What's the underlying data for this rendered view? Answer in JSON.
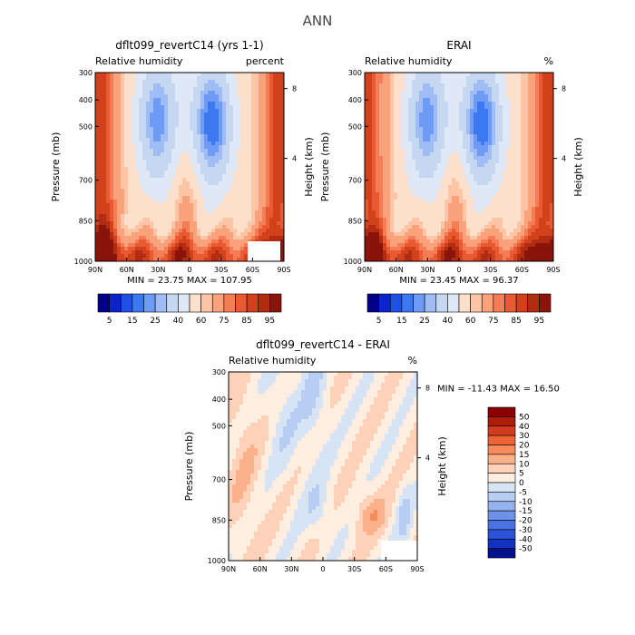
{
  "page_title": "ANN",
  "chart_data": [
    {
      "type": "heatmap",
      "title": "dflt099_revertC14 (yrs 1-1)",
      "subtitle_left": "Relative humidity",
      "subtitle_right": "percent",
      "xlabel": "",
      "ylabel": "Pressure (mb)",
      "ylabel_right": "Height (km)",
      "x_ticks": [
        "90N",
        "60N",
        "30N",
        "0",
        "30S",
        "60S",
        "90S"
      ],
      "y_ticks": [
        "300",
        "400",
        "500",
        "700",
        "850",
        "1000"
      ],
      "y_right_ticks": [
        "8",
        "4"
      ],
      "ylim": [
        1000,
        300
      ],
      "stats": "MIN =   23.75   MAX =  107.95",
      "colorbar": {
        "levels": [
          "5",
          "15",
          "25",
          "40",
          "60",
          "75",
          "85",
          "95"
        ],
        "colors": [
          "#00008b",
          "#0a24c8",
          "#1e50e6",
          "#3c78f0",
          "#6e9bf5",
          "#9fbcf5",
          "#c6d7f2",
          "#dfe8f6",
          "#fde0cc",
          "#fbc5a6",
          "#f9a27c",
          "#f47d55",
          "#ea5a32",
          "#d2401c",
          "#b22c12",
          "#8a140a"
        ]
      }
    },
    {
      "type": "heatmap",
      "title": "ERAI",
      "subtitle_left": "Relative humidity",
      "subtitle_right": "%",
      "xlabel": "",
      "ylabel": "Pressure (mb)",
      "ylabel_right": "Height (km)",
      "x_ticks": [
        "90N",
        "60N",
        "30N",
        "0",
        "30S",
        "60S",
        "90S"
      ],
      "y_ticks": [
        "300",
        "400",
        "500",
        "700",
        "850",
        "1000"
      ],
      "y_right_ticks": [
        "8",
        "4"
      ],
      "ylim": [
        1000,
        300
      ],
      "stats": "MIN =   23.45   MAX =   96.37",
      "colorbar": {
        "levels": [
          "5",
          "15",
          "25",
          "40",
          "60",
          "75",
          "85",
          "95"
        ],
        "colors": [
          "#00008b",
          "#0a24c8",
          "#1e50e6",
          "#3c78f0",
          "#6e9bf5",
          "#9fbcf5",
          "#c6d7f2",
          "#dfe8f6",
          "#fde0cc",
          "#fbc5a6",
          "#f9a27c",
          "#f47d55",
          "#ea5a32",
          "#d2401c",
          "#b22c12",
          "#8a140a"
        ]
      }
    },
    {
      "type": "heatmap",
      "title": "dflt099_revertC14 - ERAI",
      "subtitle_left": "Relative humidity",
      "subtitle_right": "%",
      "xlabel": "",
      "ylabel": "Pressure (mb)",
      "ylabel_right": "Height (km)",
      "x_ticks": [
        "90N",
        "60N",
        "30N",
        "0",
        "30S",
        "60S",
        "90S"
      ],
      "y_ticks": [
        "300",
        "400",
        "500",
        "700",
        "850",
        "1000"
      ],
      "y_right_ticks": [
        "8",
        "4"
      ],
      "ylim": [
        1000,
        300
      ],
      "stats": "MIN =  -11.43   MAX =   16.50",
      "colorbar": {
        "levels": [
          "50",
          "40",
          "30",
          "20",
          "15",
          "10",
          "5",
          "0",
          "-5",
          "-10",
          "-15",
          "-20",
          "-30",
          "-40",
          "-50"
        ],
        "colors": [
          "#8a0000",
          "#b01e0a",
          "#d23c1e",
          "#ee6436",
          "#f88a5c",
          "#fbb08a",
          "#fdd2b8",
          "#fdeee0",
          "#d6e4f5",
          "#b8cdf2",
          "#94b2ee",
          "#6e92ea",
          "#4a72e4",
          "#2c52d8",
          "#1432c0",
          "#00108e"
        ]
      }
    }
  ]
}
